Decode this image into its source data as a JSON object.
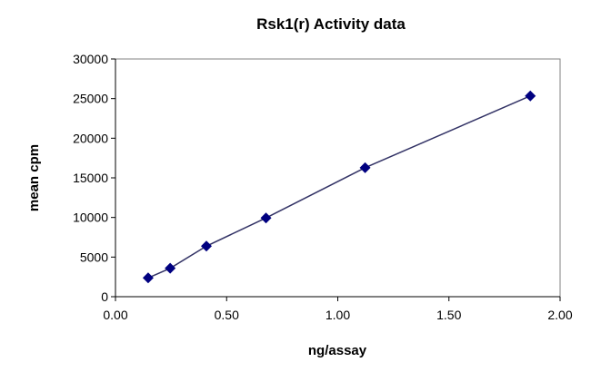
{
  "chart_data": {
    "type": "line",
    "title": "Rsk1(r) Activity data",
    "xlabel": "ng/assay",
    "ylabel": "mean cpm",
    "xlim": [
      0,
      2.0
    ],
    "ylim": [
      0,
      30000
    ],
    "xticks": [
      "0.00",
      "0.50",
      "1.00",
      "1.50",
      "2.00"
    ],
    "yticks": [
      "0",
      "5000",
      "10000",
      "15000",
      "20000",
      "25000",
      "30000"
    ],
    "grid": false,
    "legend": "none",
    "series": [
      {
        "x": [
          0.147,
          0.246,
          0.409,
          0.677,
          1.123,
          1.866
        ],
        "y": [
          2370,
          3590,
          6380,
          9940,
          16280,
          25340
        ],
        "color": "#000080",
        "marker": "diamond"
      }
    ]
  }
}
